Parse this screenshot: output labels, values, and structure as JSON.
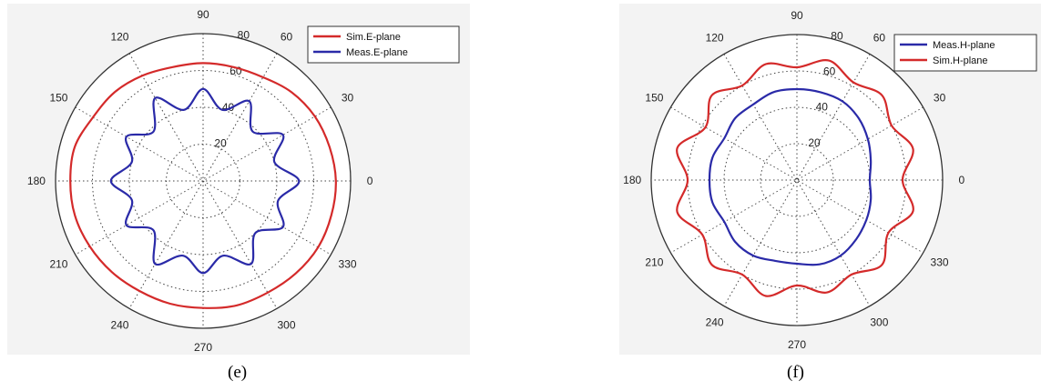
{
  "captions": [
    "(e)",
    "(f)"
  ],
  "angle_labels": [
    "0",
    "30",
    "60",
    "90",
    "120",
    "150",
    "180",
    "210",
    "240",
    "270",
    "300",
    "330"
  ],
  "chart_data": [
    {
      "type": "polar",
      "caption": "(e)",
      "theta_ticks_deg": [
        0,
        30,
        60,
        90,
        120,
        150,
        180,
        210,
        240,
        270,
        300,
        330
      ],
      "r_ticks": [
        20,
        40,
        60,
        80
      ],
      "r_tick_labels": [
        "20",
        "40",
        "60",
        "80"
      ],
      "r_max": 80,
      "grid": true,
      "legend_position": "top-right",
      "series": [
        {
          "name": "Sim.E-plane",
          "color": "#d42a2a",
          "theta": [
            0,
            15,
            30,
            45,
            60,
            75,
            90,
            105,
            120,
            135,
            150,
            165,
            180,
            195,
            210,
            225,
            240,
            255,
            270,
            285,
            300,
            315,
            330,
            345
          ],
          "r": [
            72,
            71,
            70,
            68,
            65,
            64,
            64,
            64,
            66,
            68,
            69,
            72,
            72,
            72,
            71,
            70,
            69,
            69,
            69,
            70,
            70,
            71,
            72,
            72
          ]
        },
        {
          "name": "Meas.E-plane",
          "color": "#2a2aa8",
          "theta": [
            0,
            15,
            30,
            45,
            60,
            75,
            90,
            105,
            120,
            135,
            150,
            165,
            180,
            195,
            210,
            225,
            240,
            255,
            270,
            285,
            300,
            315,
            330,
            345
          ],
          "r": [
            52,
            40,
            50,
            38,
            50,
            40,
            50,
            40,
            52,
            38,
            48,
            40,
            50,
            40,
            48,
            38,
            52,
            42,
            50,
            42,
            52,
            40,
            50,
            42
          ]
        }
      ]
    },
    {
      "type": "polar",
      "caption": "(f)",
      "theta_ticks_deg": [
        0,
        30,
        60,
        90,
        120,
        150,
        180,
        210,
        240,
        270,
        300,
        330
      ],
      "r_ticks": [
        20,
        40,
        60,
        80
      ],
      "r_tick_labels": [
        "20",
        "40",
        "60",
        "80"
      ],
      "r_max": 80,
      "grid": true,
      "legend_position": "top-right",
      "series": [
        {
          "name": "Meas.H-plane",
          "color": "#2a2aa8",
          "theta": [
            0,
            15,
            30,
            45,
            60,
            75,
            90,
            105,
            120,
            135,
            150,
            165,
            180,
            195,
            210,
            225,
            240,
            255,
            270,
            285,
            300,
            315,
            330,
            345
          ],
          "r": [
            40,
            42,
            45,
            48,
            50,
            50,
            50,
            50,
            48,
            48,
            46,
            48,
            48,
            48,
            46,
            48,
            48,
            46,
            46,
            48,
            48,
            46,
            44,
            42
          ]
        },
        {
          "name": "Sim.H-plane",
          "color": "#d42a2a",
          "theta": [
            0,
            15,
            30,
            45,
            60,
            75,
            90,
            105,
            120,
            135,
            150,
            165,
            180,
            195,
            210,
            225,
            240,
            255,
            270,
            285,
            300,
            315,
            330,
            345
          ],
          "r": [
            58,
            66,
            60,
            66,
            62,
            68,
            62,
            66,
            60,
            66,
            58,
            68,
            60,
            68,
            60,
            66,
            60,
            66,
            58,
            64,
            60,
            66,
            58,
            66
          ]
        }
      ]
    }
  ]
}
